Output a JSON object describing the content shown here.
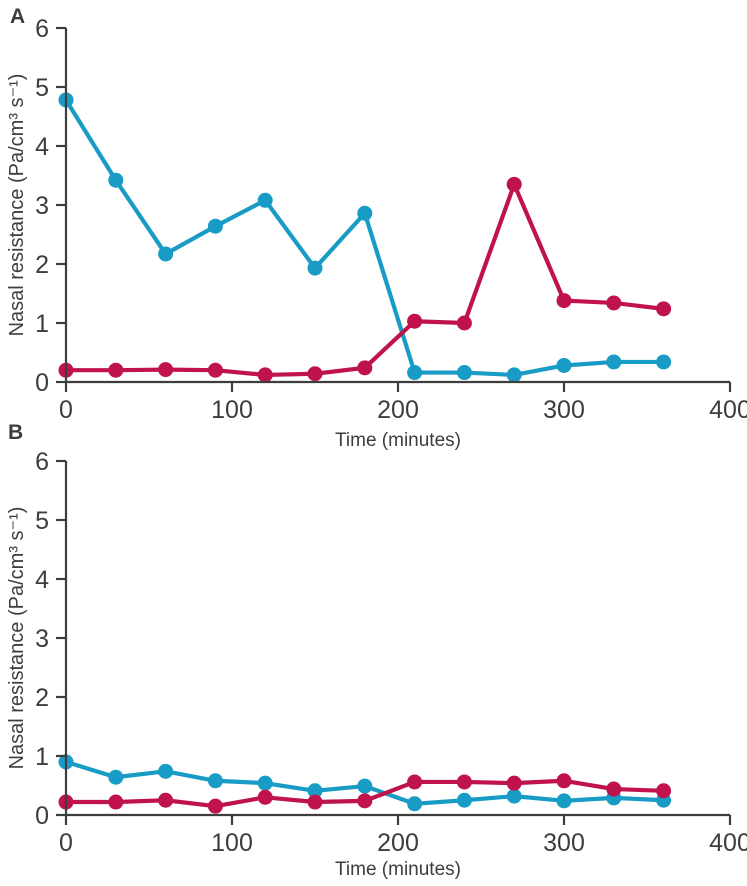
{
  "figure": {
    "background": "#ffffff",
    "text_color": "#3d3d3d",
    "axis_color": "#3d3d3d",
    "panels": [
      {
        "letter": "A"
      },
      {
        "letter": "B"
      }
    ]
  },
  "chart_data": [
    {
      "type": "line",
      "panel": "A",
      "title": "",
      "xlabel": "Time (minutes)",
      "ylabel": "Nasal resistance (Pa/cm³ s⁻¹)",
      "xlim": [
        0,
        400
      ],
      "ylim": [
        0,
        6
      ],
      "x_ticks": [
        0,
        100,
        200,
        300,
        400
      ],
      "y_ticks": [
        0,
        1,
        2,
        3,
        4,
        5,
        6
      ],
      "grid": false,
      "legend": false,
      "x": [
        0,
        30,
        60,
        90,
        120,
        150,
        180,
        210,
        240,
        270,
        300,
        330,
        360
      ],
      "series": [
        {
          "name": "teal-series",
          "color": "#189cc5",
          "values": [
            4.78,
            3.42,
            2.17,
            2.64,
            3.08,
            1.93,
            2.86,
            0.16,
            0.16,
            0.12,
            0.28,
            0.34,
            0.34
          ]
        },
        {
          "name": "crimson-series",
          "color": "#c0134c",
          "values": [
            0.2,
            0.2,
            0.21,
            0.2,
            0.12,
            0.14,
            0.24,
            1.03,
            1.0,
            3.35,
            1.38,
            1.34,
            1.24
          ]
        }
      ]
    },
    {
      "type": "line",
      "panel": "B",
      "title": "",
      "xlabel": "Time (minutes)",
      "ylabel": "Nasal resistance (Pa/cm³ s⁻¹)",
      "xlim": [
        0,
        400
      ],
      "ylim": [
        0,
        6
      ],
      "x_ticks": [
        0,
        100,
        200,
        300,
        400
      ],
      "y_ticks": [
        0,
        1,
        2,
        3,
        4,
        5,
        6
      ],
      "grid": false,
      "legend": false,
      "x": [
        0,
        30,
        60,
        90,
        120,
        150,
        180,
        210,
        240,
        270,
        300,
        330,
        360
      ],
      "series": [
        {
          "name": "teal-series",
          "color": "#189cc5",
          "values": [
            0.9,
            0.64,
            0.74,
            0.58,
            0.54,
            0.41,
            0.49,
            0.19,
            0.25,
            0.32,
            0.24,
            0.29,
            0.25
          ]
        },
        {
          "name": "crimson-series",
          "color": "#c0134c",
          "values": [
            0.22,
            0.22,
            0.25,
            0.15,
            0.3,
            0.22,
            0.24,
            0.56,
            0.56,
            0.54,
            0.58,
            0.44,
            0.41
          ]
        }
      ]
    }
  ]
}
